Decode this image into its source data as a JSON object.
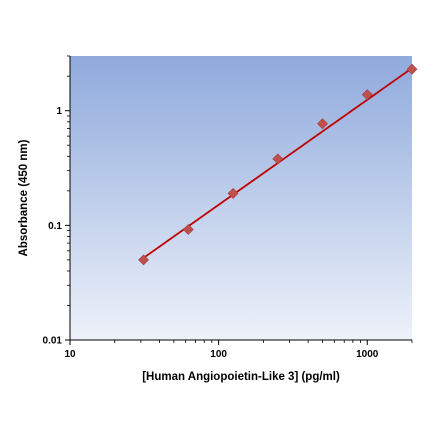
{
  "chart_data": {
    "type": "scatter",
    "title": "",
    "xlabel": "[Human Angiopoietin-Like 3] (pg/ml)",
    "ylabel": "Absorbance (450 nm)",
    "x_scale": "log",
    "y_scale": "log",
    "xlim": [
      10,
      2000
    ],
    "ylim": [
      0.01,
      3
    ],
    "x_ticks": [
      10,
      100,
      1000
    ],
    "x_tick_labels": [
      "10",
      "100",
      "1000"
    ],
    "y_ticks": [
      0.01,
      0.1,
      1
    ],
    "y_tick_labels": [
      "0.01",
      "0.1",
      "1"
    ],
    "grid": false,
    "legend": "none",
    "series": [
      {
        "marker": "diamond",
        "color": "#c0504d",
        "x": [
          31.25,
          62.5,
          125,
          250,
          500,
          1000,
          2000
        ],
        "y": [
          0.05,
          0.092,
          0.19,
          0.38,
          0.77,
          1.38,
          2.3
        ]
      }
    ],
    "fit_line": {
      "color": "#c00000",
      "x": [
        31.25,
        2000
      ],
      "y": [
        0.052,
        2.35
      ]
    },
    "plot_background": {
      "top": "#8faadc",
      "bottom": "#eef2fa"
    }
  }
}
